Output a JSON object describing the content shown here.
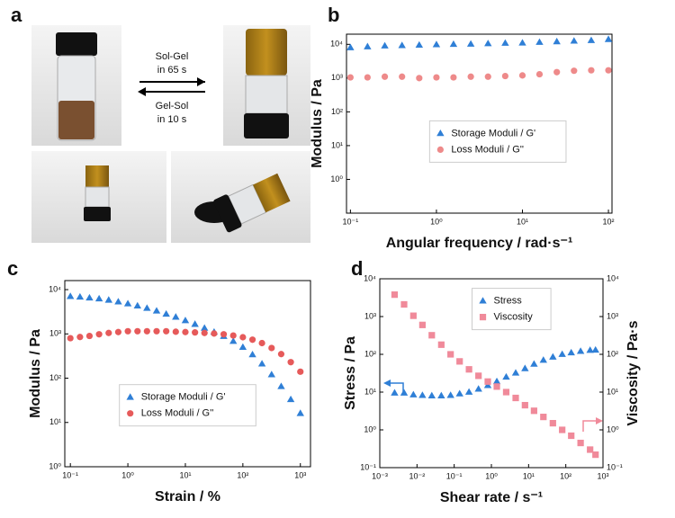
{
  "panel_labels": [
    "a",
    "b",
    "c",
    "d"
  ],
  "photo_text": [
    "Sol-Gel",
    "in 65 s",
    "Gel-Sol",
    "in 10 s"
  ],
  "chart_data": [
    {
      "type": "scatter",
      "xlabel": "Angular frequency / rad·s⁻¹",
      "ylabel": "Modulus / Pa",
      "xscale": "log",
      "yscale": "log",
      "legend": "center",
      "xlim": [
        0.09,
        110
      ],
      "ylim": [
        0.1,
        20000
      ],
      "xticks": [
        {
          "value": 0.1,
          "label": "10⁻¹"
        },
        {
          "value": 1,
          "label": "10⁰"
        },
        {
          "value": 10,
          "label": "10¹"
        },
        {
          "value": 100,
          "label": "10²"
        }
      ],
      "yticks": [
        {
          "value": 1,
          "label": "10⁰"
        },
        {
          "value": 10,
          "label": "10¹"
        },
        {
          "value": 100,
          "label": "10²"
        },
        {
          "value": 1000,
          "label": "10³"
        },
        {
          "value": 10000,
          "label": "10⁴"
        }
      ],
      "x": [
        0.1,
        0.158,
        0.251,
        0.398,
        0.631,
        1,
        1.58,
        2.51,
        3.98,
        6.31,
        10,
        15.8,
        25.1,
        39.8,
        63.1,
        100
      ],
      "series": [
        {
          "name": "Storage Moduli / G'",
          "color": "#2f7fd6",
          "marker": "triangle",
          "values": [
            8000,
            8500,
            9000,
            9200,
            9500,
            9800,
            10000,
            10200,
            10500,
            10800,
            11000,
            11500,
            12000,
            12500,
            13000,
            14000
          ]
        },
        {
          "name": "Loss Moduli / G''",
          "color": "#ee8a8a",
          "marker": "circle",
          "values": [
            1050,
            1050,
            1100,
            1100,
            1000,
            1050,
            1050,
            1100,
            1100,
            1150,
            1200,
            1300,
            1500,
            1650,
            1700,
            1700
          ]
        }
      ]
    },
    {
      "type": "scatter",
      "xlabel": "Strain / %",
      "ylabel": "Modulus / Pa",
      "xscale": "log",
      "yscale": "log",
      "legend": "lower center",
      "xlim": [
        0.08,
        1500
      ],
      "ylim": [
        1,
        16000
      ],
      "xticks": [
        {
          "value": 0.1,
          "label": "10⁻¹"
        },
        {
          "value": 1,
          "label": "10⁰"
        },
        {
          "value": 10,
          "label": "10¹"
        },
        {
          "value": 100,
          "label": "10²"
        },
        {
          "value": 1000,
          "label": "10³"
        }
      ],
      "yticks": [
        {
          "value": 1,
          "label": "10⁰"
        },
        {
          "value": 10,
          "label": "10¹"
        },
        {
          "value": 100,
          "label": "10²"
        },
        {
          "value": 1000,
          "label": "10³"
        },
        {
          "value": 10000,
          "label": "10⁴"
        }
      ],
      "x": [
        0.1,
        0.147,
        0.215,
        0.316,
        0.464,
        0.681,
        1,
        1.47,
        2.15,
        3.16,
        4.64,
        6.81,
        10,
        14.7,
        21.5,
        31.6,
        46.4,
        68.1,
        100,
        147,
        215,
        316,
        464,
        681,
        1000
      ],
      "series": [
        {
          "name": "Storage Moduli / G'",
          "color": "#2f7fd6",
          "marker": "triangle",
          "values": [
            7000,
            6800,
            6500,
            6200,
            5800,
            5300,
            4800,
            4300,
            3800,
            3300,
            2800,
            2400,
            2000,
            1650,
            1350,
            1100,
            880,
            680,
            500,
            340,
            210,
            120,
            65,
            33,
            16
          ]
        },
        {
          "name": "Loss Moduli / G''",
          "color": "#e65a5a",
          "marker": "circle",
          "values": [
            800,
            850,
            900,
            980,
            1050,
            1100,
            1150,
            1150,
            1150,
            1150,
            1150,
            1120,
            1100,
            1080,
            1050,
            1020,
            980,
            920,
            840,
            740,
            620,
            480,
            350,
            230,
            140
          ]
        }
      ]
    },
    {
      "type": "scatter",
      "xlabel": "Shear rate / s⁻¹",
      "ylabel": "Stress / Pa",
      "y2label": "Viscosity / Pa·s",
      "xscale": "log",
      "yscale": "log",
      "legend": "upper center",
      "xlim": [
        0.001,
        1000
      ],
      "ylim": [
        0.1,
        10000
      ],
      "y2lim": [
        0.1,
        10000
      ],
      "xticks": [
        {
          "value": 0.001,
          "label": "10⁻³"
        },
        {
          "value": 0.01,
          "label": "10⁻²"
        },
        {
          "value": 0.1,
          "label": "10⁻¹"
        },
        {
          "value": 1,
          "label": "10⁰"
        },
        {
          "value": 10,
          "label": "10¹"
        },
        {
          "value": 100,
          "label": "10²"
        },
        {
          "value": 1000,
          "label": "10³"
        }
      ],
      "yticks": [
        {
          "value": 0.1,
          "label": "10⁻¹"
        },
        {
          "value": 1,
          "label": "10⁰"
        },
        {
          "value": 10,
          "label": "10¹"
        },
        {
          "value": 100,
          "label": "10²"
        },
        {
          "value": 1000,
          "label": "10³"
        },
        {
          "value": 10000,
          "label": "10⁴"
        }
      ],
      "y2ticks": [
        {
          "value": 0.1,
          "label": "10⁻¹"
        },
        {
          "value": 1,
          "label": "10⁰"
        },
        {
          "value": 10,
          "label": "10¹"
        },
        {
          "value": 100,
          "label": "10²"
        },
        {
          "value": 1000,
          "label": "10³"
        },
        {
          "value": 10000,
          "label": "10⁴"
        }
      ],
      "x": [
        0.0025,
        0.0045,
        0.008,
        0.014,
        0.025,
        0.045,
        0.08,
        0.14,
        0.25,
        0.45,
        0.8,
        1.4,
        2.5,
        4.5,
        8,
        14,
        25,
        45,
        80,
        140,
        250,
        450,
        630
      ],
      "series": [
        {
          "name": "Stress",
          "color": "#2f7fd6",
          "marker": "triangle",
          "values": [
            9.5,
            9.5,
            8.5,
            8.2,
            8,
            8,
            8.2,
            9,
            10,
            12,
            15,
            19,
            25,
            32,
            42,
            55,
            70,
            85,
            100,
            110,
            120,
            128,
            130
          ]
        },
        {
          "name": "Viscosity",
          "color": "#f08a9a",
          "marker": "square",
          "axis": "y2",
          "values": [
            3800,
            2100,
            1050,
            600,
            320,
            180,
            100,
            65,
            40,
            27,
            19,
            14,
            10,
            7,
            4.5,
            3.2,
            2.2,
            1.5,
            1,
            0.7,
            0.45,
            0.3,
            0.22
          ]
        }
      ]
    }
  ]
}
